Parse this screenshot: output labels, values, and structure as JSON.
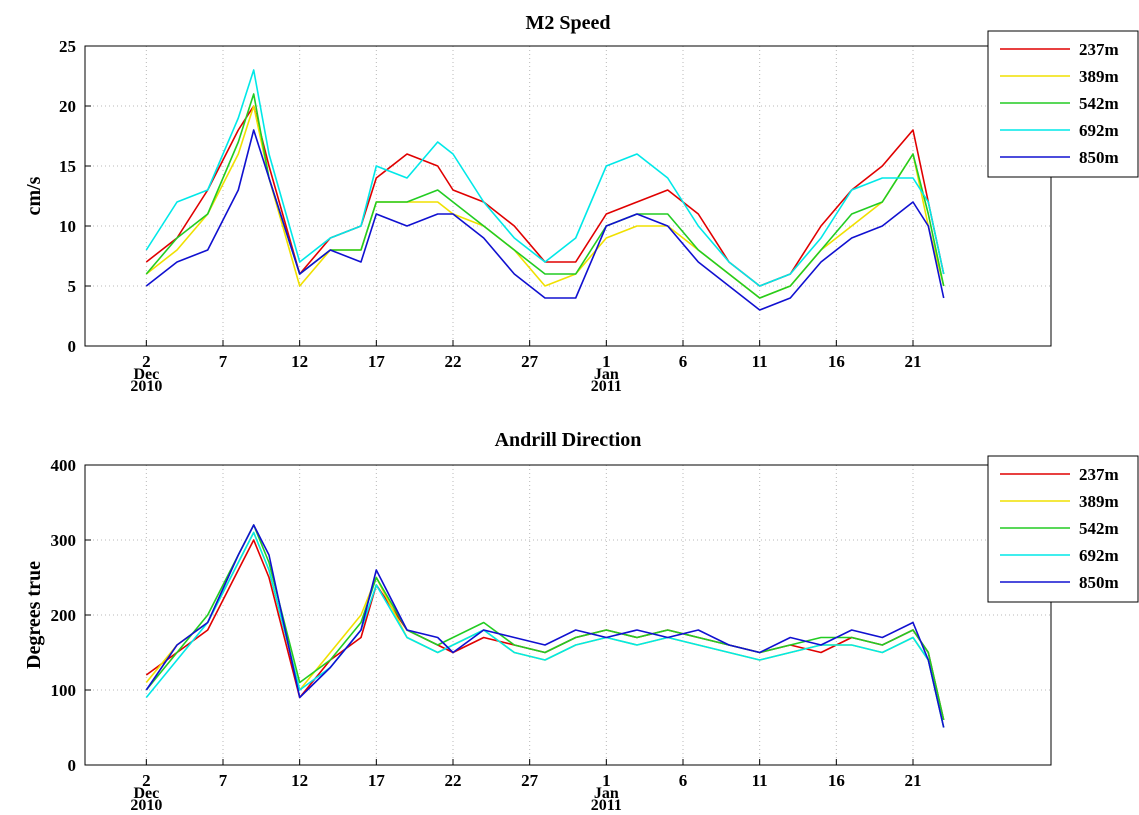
{
  "chart_data": [
    {
      "type": "line",
      "title": "M2 Speed",
      "xlabel": "",
      "ylabel": "cm/s",
      "ylim": [
        0,
        25
      ],
      "yticks": [
        0,
        5,
        10,
        15,
        20,
        25
      ],
      "xlim": [
        "2010-11-28",
        "2011-01-30"
      ],
      "x_ticks": [
        {
          "date": "2010-12-02",
          "label": "2"
        },
        {
          "date": "2010-12-07",
          "label": "7"
        },
        {
          "date": "2010-12-12",
          "label": "12"
        },
        {
          "date": "2010-12-17",
          "label": "17"
        },
        {
          "date": "2010-12-22",
          "label": "22"
        },
        {
          "date": "2010-12-27",
          "label": "27"
        },
        {
          "date": "2011-01-01",
          "label": "1"
        },
        {
          "date": "2011-01-06",
          "label": "6"
        },
        {
          "date": "2011-01-11",
          "label": "11"
        },
        {
          "date": "2011-01-16",
          "label": "16"
        },
        {
          "date": "2011-01-21",
          "label": "21"
        }
      ],
      "month_labels": [
        {
          "date": "2010-12-02",
          "month": "Dec",
          "year": "2010"
        },
        {
          "date": "2011-01-01",
          "month": "Jan",
          "year": "2011"
        }
      ],
      "grid": true,
      "legend_position": "outside-top-right",
      "x": [
        "2010-12-02",
        "2010-12-04",
        "2010-12-06",
        "2010-12-08",
        "2010-12-09",
        "2010-12-10",
        "2010-12-12",
        "2010-12-14",
        "2010-12-16",
        "2010-12-17",
        "2010-12-19",
        "2010-12-21",
        "2010-12-22",
        "2010-12-24",
        "2010-12-26",
        "2010-12-28",
        "2010-12-30",
        "2011-01-01",
        "2011-01-03",
        "2011-01-05",
        "2011-01-07",
        "2011-01-09",
        "2011-01-11",
        "2011-01-13",
        "2011-01-15",
        "2011-01-17",
        "2011-01-19",
        "2011-01-21",
        "2011-01-22",
        "2011-01-23"
      ],
      "series": [
        {
          "name": "237m",
          "color": "#e00000",
          "values": [
            7,
            9,
            13,
            18,
            20,
            15,
            6,
            9,
            10,
            14,
            16,
            15,
            13,
            12,
            10,
            7,
            7,
            11,
            12,
            13,
            11,
            7,
            5,
            6,
            10,
            13,
            15,
            18,
            12,
            6
          ]
        },
        {
          "name": "389m",
          "color": "#f0e000",
          "values": [
            6,
            8,
            11,
            16,
            20,
            14,
            5,
            8,
            8,
            12,
            12,
            12,
            11,
            10,
            8,
            5,
            6,
            9,
            10,
            10,
            8,
            6,
            4,
            5,
            8,
            10,
            12,
            16,
            10,
            5
          ]
        },
        {
          "name": "542m",
          "color": "#22cc22",
          "values": [
            6,
            9,
            11,
            17,
            21,
            14,
            6,
            8,
            8,
            12,
            12,
            13,
            12,
            10,
            8,
            6,
            6,
            10,
            11,
            11,
            8,
            6,
            4,
            5,
            8,
            11,
            12,
            16,
            11,
            5
          ]
        },
        {
          "name": "692m",
          "color": "#00e8e8",
          "values": [
            8,
            12,
            13,
            19,
            23,
            16,
            7,
            9,
            10,
            15,
            14,
            17,
            16,
            12,
            9,
            7,
            9,
            15,
            16,
            14,
            10,
            7,
            5,
            6,
            9,
            13,
            14,
            14,
            12,
            6
          ]
        },
        {
          "name": "850m",
          "color": "#1010d0",
          "values": [
            5,
            7,
            8,
            13,
            18,
            14,
            6,
            8,
            7,
            11,
            10,
            11,
            11,
            9,
            6,
            4,
            4,
            10,
            11,
            10,
            7,
            5,
            3,
            4,
            7,
            9,
            10,
            12,
            10,
            4
          ]
        }
      ]
    },
    {
      "type": "line",
      "title": "Andrill Direction",
      "xlabel": "",
      "ylabel": "Degrees true",
      "ylim": [
        0,
        400
      ],
      "yticks": [
        0,
        100,
        200,
        300,
        400
      ],
      "xlim": [
        "2010-11-28",
        "2011-01-30"
      ],
      "x_ticks": [
        {
          "date": "2010-12-02",
          "label": "2"
        },
        {
          "date": "2010-12-07",
          "label": "7"
        },
        {
          "date": "2010-12-12",
          "label": "12"
        },
        {
          "date": "2010-12-17",
          "label": "17"
        },
        {
          "date": "2010-12-22",
          "label": "22"
        },
        {
          "date": "2010-12-27",
          "label": "27"
        },
        {
          "date": "2011-01-01",
          "label": "1"
        },
        {
          "date": "2011-01-06",
          "label": "6"
        },
        {
          "date": "2011-01-11",
          "label": "11"
        },
        {
          "date": "2011-01-16",
          "label": "16"
        },
        {
          "date": "2011-01-21",
          "label": "21"
        }
      ],
      "month_labels": [
        {
          "date": "2010-12-02",
          "month": "Dec",
          "year": "2010"
        },
        {
          "date": "2011-01-01",
          "month": "Jan",
          "year": "2011"
        }
      ],
      "grid": true,
      "legend_position": "outside-top-right",
      "x": [
        "2010-12-02",
        "2010-12-04",
        "2010-12-06",
        "2010-12-08",
        "2010-12-09",
        "2010-12-10",
        "2010-12-12",
        "2010-12-14",
        "2010-12-16",
        "2010-12-17",
        "2010-12-19",
        "2010-12-21",
        "2010-12-22",
        "2010-12-24",
        "2010-12-26",
        "2010-12-28",
        "2010-12-30",
        "2011-01-01",
        "2011-01-03",
        "2011-01-05",
        "2011-01-07",
        "2011-01-09",
        "2011-01-11",
        "2011-01-13",
        "2011-01-15",
        "2011-01-17",
        "2011-01-19",
        "2011-01-21",
        "2011-01-22",
        "2011-01-23"
      ],
      "series": [
        {
          "name": "237m",
          "color": "#e00000",
          "values": [
            120,
            150,
            180,
            260,
            300,
            250,
            90,
            140,
            170,
            240,
            180,
            160,
            150,
            170,
            160,
            150,
            170,
            180,
            170,
            180,
            170,
            160,
            150,
            160,
            150,
            170,
            160,
            180,
            150,
            60
          ]
        },
        {
          "name": "389m",
          "color": "#f0e000",
          "values": [
            110,
            160,
            190,
            270,
            310,
            260,
            100,
            150,
            200,
            250,
            170,
            150,
            160,
            180,
            150,
            140,
            160,
            170,
            160,
            170,
            160,
            150,
            140,
            150,
            160,
            160,
            150,
            170,
            140,
            50
          ]
        },
        {
          "name": "542m",
          "color": "#22cc22",
          "values": [
            100,
            150,
            200,
            280,
            320,
            270,
            110,
            140,
            190,
            250,
            180,
            160,
            170,
            190,
            160,
            150,
            170,
            180,
            170,
            180,
            170,
            160,
            150,
            160,
            170,
            170,
            160,
            180,
            150,
            60
          ]
        },
        {
          "name": "692m",
          "color": "#00e8e8",
          "values": [
            90,
            140,
            190,
            270,
            310,
            260,
            100,
            130,
            180,
            240,
            170,
            150,
            160,
            180,
            150,
            140,
            160,
            170,
            160,
            170,
            160,
            150,
            140,
            150,
            160,
            160,
            150,
            170,
            140,
            50
          ]
        },
        {
          "name": "850m",
          "color": "#1010d0",
          "values": [
            100,
            160,
            190,
            280,
            320,
            280,
            90,
            130,
            180,
            260,
            180,
            170,
            150,
            180,
            170,
            160,
            180,
            170,
            180,
            170,
            180,
            160,
            150,
            170,
            160,
            180,
            170,
            190,
            140,
            50
          ]
        }
      ]
    }
  ]
}
